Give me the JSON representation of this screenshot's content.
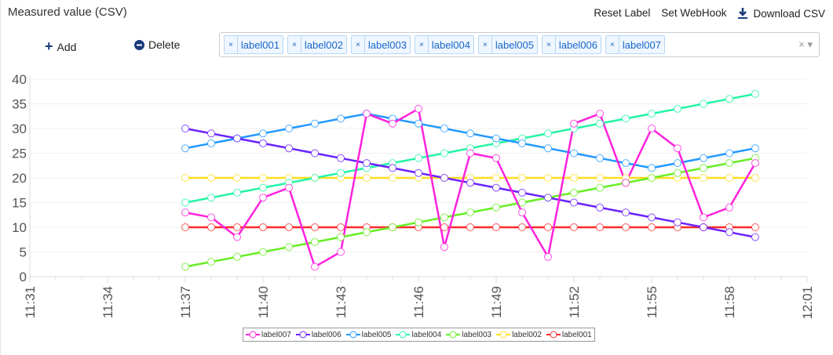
{
  "header": {
    "title": "Measured value (CSV)",
    "reset_label": "Reset Label",
    "set_webhook": "Set WebHook",
    "download_csv": "Download CSV"
  },
  "toolbar": {
    "add": "Add",
    "delete": "Delete"
  },
  "selected_labels": [
    "label001",
    "label002",
    "label003",
    "label004",
    "label005",
    "label006",
    "label007"
  ],
  "chart_data": {
    "type": "line",
    "title": "",
    "xlabel": "",
    "ylabel": "",
    "ylim": [
      0,
      40
    ],
    "yticks": [
      0,
      5,
      10,
      15,
      20,
      25,
      30,
      35,
      40
    ],
    "xlim": [
      "11:31",
      "12:01"
    ],
    "xticks": [
      "11:31",
      "11:34",
      "11:37",
      "11:40",
      "11:43",
      "11:46",
      "11:49",
      "11:52",
      "11:55",
      "11:58",
      "12:01"
    ],
    "x": [
      "11:37",
      "11:38",
      "11:39",
      "11:40",
      "11:41",
      "11:42",
      "11:43",
      "11:44",
      "11:45",
      "11:46",
      "11:47",
      "11:48",
      "11:49",
      "11:50",
      "11:51",
      "11:52",
      "11:53",
      "11:54",
      "11:55",
      "11:56",
      "11:57",
      "11:58",
      "11:59"
    ],
    "legend_position": "bottom",
    "grid": true,
    "series": [
      {
        "name": "label007",
        "color": "#ff22dd",
        "values": [
          13,
          12,
          8,
          16,
          18,
          2,
          5,
          33,
          31,
          34,
          6,
          25,
          24,
          13,
          4,
          31,
          33,
          19,
          30,
          26,
          12,
          14,
          23
        ]
      },
      {
        "name": "label006",
        "color": "#6a22ff",
        "values": [
          30,
          29,
          28,
          27,
          26,
          25,
          24,
          23,
          22,
          21,
          20,
          19,
          18,
          17,
          16,
          15,
          14,
          13,
          12,
          11,
          10,
          9,
          8
        ]
      },
      {
        "name": "label005",
        "color": "#2299ff",
        "values": [
          26,
          27,
          28,
          29,
          30,
          31,
          32,
          33,
          32,
          31,
          30,
          29,
          28,
          27,
          26,
          25,
          24,
          23,
          22,
          23,
          24,
          25,
          26
        ]
      },
      {
        "name": "label004",
        "color": "#22f5a5",
        "values": [
          15,
          16,
          17,
          18,
          19,
          20,
          21,
          22,
          23,
          24,
          25,
          26,
          27,
          28,
          29,
          30,
          31,
          32,
          33,
          34,
          35,
          36,
          37
        ]
      },
      {
        "name": "label003",
        "color": "#66ee22",
        "values": [
          2,
          3,
          4,
          5,
          6,
          7,
          8,
          9,
          10,
          11,
          12,
          13,
          14,
          15,
          16,
          17,
          18,
          19,
          20,
          21,
          22,
          23,
          24
        ]
      },
      {
        "name": "label002",
        "color": "#ffdd22",
        "values": [
          20,
          20,
          20,
          20,
          20,
          20,
          20,
          20,
          20,
          20,
          20,
          20,
          20,
          20,
          20,
          20,
          20,
          20,
          20,
          20,
          20,
          20,
          20
        ]
      },
      {
        "name": "label001",
        "color": "#ff2a2a",
        "values": [
          10,
          10,
          10,
          10,
          10,
          10,
          10,
          10,
          10,
          10,
          10,
          10,
          10,
          10,
          10,
          10,
          10,
          10,
          10,
          10,
          10,
          10,
          10
        ]
      }
    ]
  }
}
